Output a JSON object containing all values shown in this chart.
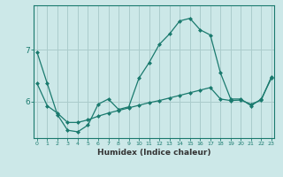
{
  "xlabel": "Humidex (Indice chaleur)",
  "background_color": "#cce8e8",
  "grid_color": "#aacccc",
  "line_color": "#1a7a6e",
  "x_values": [
    0,
    1,
    2,
    3,
    4,
    5,
    6,
    7,
    8,
    9,
    10,
    11,
    12,
    13,
    14,
    15,
    16,
    17,
    18,
    19,
    20,
    21,
    22,
    23
  ],
  "line1_y": [
    6.95,
    6.35,
    5.75,
    5.45,
    5.42,
    5.55,
    5.95,
    6.05,
    5.85,
    5.9,
    6.45,
    6.75,
    7.1,
    7.3,
    7.55,
    7.6,
    7.38,
    7.28,
    6.55,
    6.05,
    6.05,
    5.92,
    6.05,
    6.45
  ],
  "line2_y": [
    6.35,
    5.92,
    5.78,
    5.6,
    5.6,
    5.65,
    5.72,
    5.78,
    5.83,
    5.88,
    5.93,
    5.98,
    6.02,
    6.07,
    6.12,
    6.17,
    6.22,
    6.27,
    6.05,
    6.02,
    6.03,
    5.95,
    6.03,
    6.48
  ],
  "ylim": [
    5.3,
    7.85
  ],
  "yticks": [
    6,
    7
  ],
  "xticks": [
    0,
    1,
    2,
    3,
    4,
    5,
    6,
    7,
    8,
    9,
    10,
    11,
    12,
    13,
    14,
    15,
    16,
    17,
    18,
    19,
    20,
    21,
    22,
    23
  ],
  "xlim": [
    -0.3,
    23.3
  ]
}
